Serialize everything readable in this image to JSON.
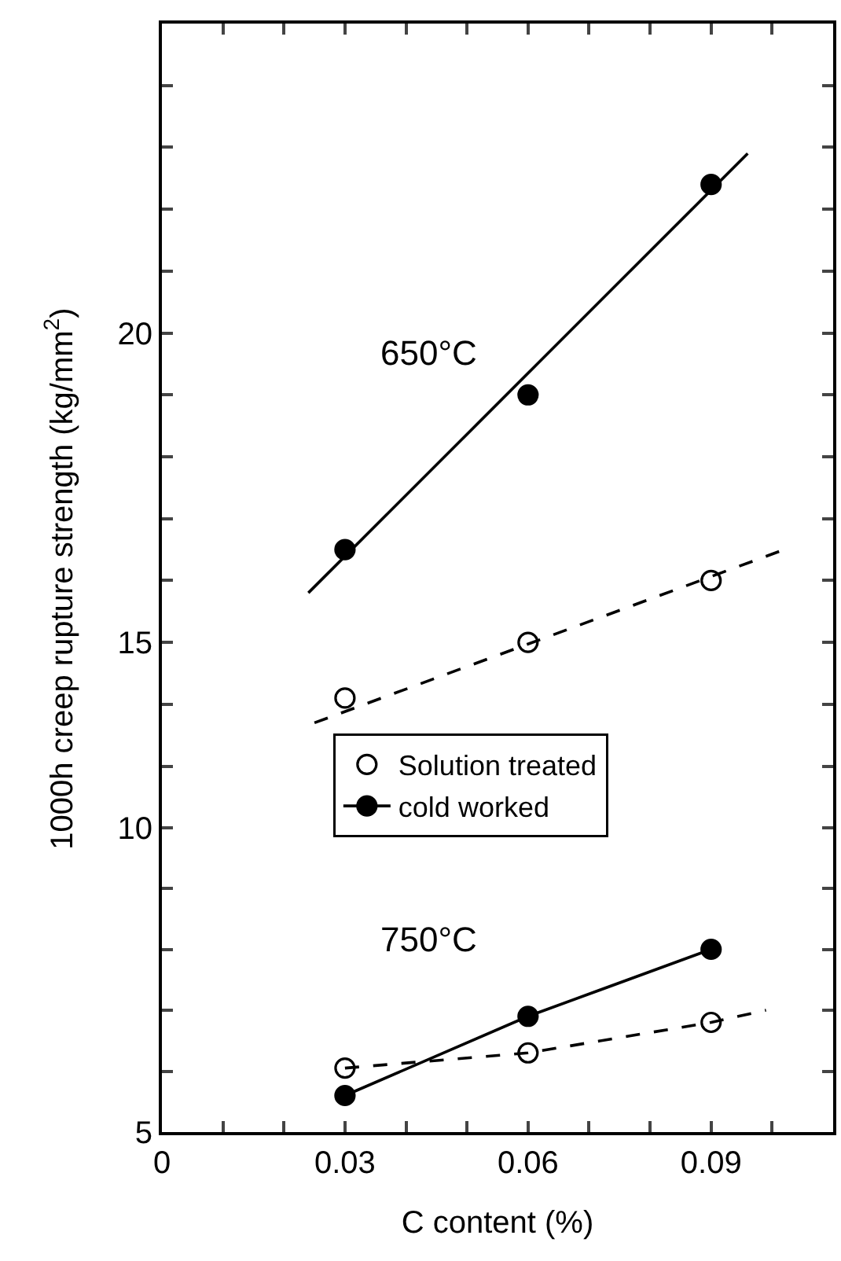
{
  "chart_data": [
    {
      "type": "scatter",
      "ylabel": "1000h creep rupture strength (kg/mm$^{2}$)",
      "xlim": [
        0,
        0.11
      ],
      "ylim": [
        12.6,
        25
      ],
      "xticks": [
        {
          "value": 0,
          "label": null
        },
        {
          "value": 0.01,
          "label": null
        },
        {
          "value": 0.02,
          "label": null
        },
        {
          "value": 0.03,
          "label": null
        },
        {
          "value": 0.04,
          "label": null
        },
        {
          "value": 0.05,
          "label": null
        },
        {
          "value": 0.06,
          "label": null
        },
        {
          "value": 0.07,
          "label": null
        },
        {
          "value": 0.08,
          "label": null
        },
        {
          "value": 0.09,
          "label": null
        },
        {
          "value": 0.1,
          "label": null
        }
      ],
      "yticks": [
        {
          "value": 13,
          "label": null
        },
        {
          "value": 14,
          "label": null
        },
        15,
        {
          "value": 16,
          "label": null
        },
        {
          "value": 17,
          "label": null
        },
        {
          "value": 18,
          "label": null
        },
        {
          "value": 19,
          "label": null
        },
        20,
        {
          "value": 21,
          "label": null
        },
        {
          "value": 22,
          "label": null
        },
        {
          "value": 23,
          "label": null
        },
        {
          "value": 24,
          "label": null
        }
      ],
      "tick_labels": "y",
      "legend": false,
      "annotations": [
        "650°C"
      ],
      "series": [
        {
          "marker": "circle",
          "color": "#ffffff",
          "x": [
            0.03,
            0.06,
            0.09
          ],
          "values": [
            14.1,
            15.0,
            16.0
          ]
        },
        {
          "marker": "circle",
          "color": "#000000",
          "x": [
            0.03,
            0.06,
            0.09
          ],
          "values": [
            16.5,
            19.0,
            22.4
          ]
        },
        {
          "type": "line",
          "marker": "none",
          "line_style": "dashed",
          "color": "#000000",
          "x": [
            0.025,
            0.102
          ],
          "values": [
            13.7,
            16.5
          ]
        },
        {
          "type": "line",
          "marker": "none",
          "line_style": "solid",
          "color": "#000000",
          "x": [
            0.024,
            0.096
          ],
          "values": [
            15.8,
            22.9
          ]
        }
      ]
    },
    {
      "type": "scatter",
      "xlabel": "C content (%)",
      "xlim": [
        0,
        0.11
      ],
      "ylim": [
        5,
        10.6
      ],
      "xticks": [
        0,
        {
          "value": 0.01,
          "label": null
        },
        {
          "value": 0.02,
          "label": null
        },
        0.03,
        {
          "value": 0.04,
          "label": null
        },
        {
          "value": 0.05,
          "label": null
        },
        0.06,
        {
          "value": 0.07,
          "label": null
        },
        {
          "value": 0.08,
          "label": null
        },
        0.09,
        {
          "value": 0.1,
          "label": null
        }
      ],
      "yticks": [
        5,
        {
          "value": 6,
          "label": null
        },
        {
          "value": 7,
          "label": null
        },
        {
          "value": 8,
          "label": null
        },
        {
          "value": 9,
          "label": null
        },
        10
      ],
      "legend": "top",
      "annotations": [
        "750°C"
      ],
      "series": [
        {
          "name": "Solution treated",
          "marker": "circle",
          "color": "#ffffff",
          "x": [
            0.03,
            0.06,
            0.09
          ],
          "values": [
            6.05,
            6.3,
            6.8
          ]
        },
        {
          "type": "line",
          "name": "cold worked",
          "marker": "circle",
          "line_style": "solid",
          "color": "#000000",
          "x": [
            0.03,
            0.06,
            0.09
          ],
          "values": [
            5.6,
            6.9,
            8.0
          ]
        },
        {
          "type": "line",
          "marker": "none",
          "line_style": "dashed",
          "color": "#000000",
          "x": [
            0.03,
            0.06,
            0.09,
            0.099
          ],
          "values": [
            6.05,
            6.3,
            6.8,
            7.0
          ]
        }
      ]
    }
  ]
}
